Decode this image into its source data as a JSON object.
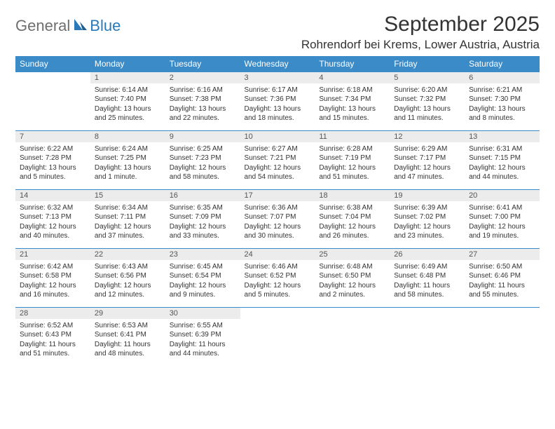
{
  "logo": {
    "text_gray": "General",
    "text_blue": "Blue"
  },
  "title": "September 2025",
  "location": "Rohrendorf bei Krems, Lower Austria, Austria",
  "colors": {
    "header_bg": "#3b8bc8",
    "daynum_bg": "#ececec",
    "row_border": "#3b8bc8",
    "text": "#333333",
    "logo_gray": "#6f6f6f",
    "logo_blue": "#2a7ab9"
  },
  "weekdays": [
    "Sunday",
    "Monday",
    "Tuesday",
    "Wednesday",
    "Thursday",
    "Friday",
    "Saturday"
  ],
  "weeks": [
    [
      null,
      {
        "n": "1",
        "sr": "Sunrise: 6:14 AM",
        "ss": "Sunset: 7:40 PM",
        "dl": "Daylight: 13 hours and 25 minutes."
      },
      {
        "n": "2",
        "sr": "Sunrise: 6:16 AM",
        "ss": "Sunset: 7:38 PM",
        "dl": "Daylight: 13 hours and 22 minutes."
      },
      {
        "n": "3",
        "sr": "Sunrise: 6:17 AM",
        "ss": "Sunset: 7:36 PM",
        "dl": "Daylight: 13 hours and 18 minutes."
      },
      {
        "n": "4",
        "sr": "Sunrise: 6:18 AM",
        "ss": "Sunset: 7:34 PM",
        "dl": "Daylight: 13 hours and 15 minutes."
      },
      {
        "n": "5",
        "sr": "Sunrise: 6:20 AM",
        "ss": "Sunset: 7:32 PM",
        "dl": "Daylight: 13 hours and 11 minutes."
      },
      {
        "n": "6",
        "sr": "Sunrise: 6:21 AM",
        "ss": "Sunset: 7:30 PM",
        "dl": "Daylight: 13 hours and 8 minutes."
      }
    ],
    [
      {
        "n": "7",
        "sr": "Sunrise: 6:22 AM",
        "ss": "Sunset: 7:28 PM",
        "dl": "Daylight: 13 hours and 5 minutes."
      },
      {
        "n": "8",
        "sr": "Sunrise: 6:24 AM",
        "ss": "Sunset: 7:25 PM",
        "dl": "Daylight: 13 hours and 1 minute."
      },
      {
        "n": "9",
        "sr": "Sunrise: 6:25 AM",
        "ss": "Sunset: 7:23 PM",
        "dl": "Daylight: 12 hours and 58 minutes."
      },
      {
        "n": "10",
        "sr": "Sunrise: 6:27 AM",
        "ss": "Sunset: 7:21 PM",
        "dl": "Daylight: 12 hours and 54 minutes."
      },
      {
        "n": "11",
        "sr": "Sunrise: 6:28 AM",
        "ss": "Sunset: 7:19 PM",
        "dl": "Daylight: 12 hours and 51 minutes."
      },
      {
        "n": "12",
        "sr": "Sunrise: 6:29 AM",
        "ss": "Sunset: 7:17 PM",
        "dl": "Daylight: 12 hours and 47 minutes."
      },
      {
        "n": "13",
        "sr": "Sunrise: 6:31 AM",
        "ss": "Sunset: 7:15 PM",
        "dl": "Daylight: 12 hours and 44 minutes."
      }
    ],
    [
      {
        "n": "14",
        "sr": "Sunrise: 6:32 AM",
        "ss": "Sunset: 7:13 PM",
        "dl": "Daylight: 12 hours and 40 minutes."
      },
      {
        "n": "15",
        "sr": "Sunrise: 6:34 AM",
        "ss": "Sunset: 7:11 PM",
        "dl": "Daylight: 12 hours and 37 minutes."
      },
      {
        "n": "16",
        "sr": "Sunrise: 6:35 AM",
        "ss": "Sunset: 7:09 PM",
        "dl": "Daylight: 12 hours and 33 minutes."
      },
      {
        "n": "17",
        "sr": "Sunrise: 6:36 AM",
        "ss": "Sunset: 7:07 PM",
        "dl": "Daylight: 12 hours and 30 minutes."
      },
      {
        "n": "18",
        "sr": "Sunrise: 6:38 AM",
        "ss": "Sunset: 7:04 PM",
        "dl": "Daylight: 12 hours and 26 minutes."
      },
      {
        "n": "19",
        "sr": "Sunrise: 6:39 AM",
        "ss": "Sunset: 7:02 PM",
        "dl": "Daylight: 12 hours and 23 minutes."
      },
      {
        "n": "20",
        "sr": "Sunrise: 6:41 AM",
        "ss": "Sunset: 7:00 PM",
        "dl": "Daylight: 12 hours and 19 minutes."
      }
    ],
    [
      {
        "n": "21",
        "sr": "Sunrise: 6:42 AM",
        "ss": "Sunset: 6:58 PM",
        "dl": "Daylight: 12 hours and 16 minutes."
      },
      {
        "n": "22",
        "sr": "Sunrise: 6:43 AM",
        "ss": "Sunset: 6:56 PM",
        "dl": "Daylight: 12 hours and 12 minutes."
      },
      {
        "n": "23",
        "sr": "Sunrise: 6:45 AM",
        "ss": "Sunset: 6:54 PM",
        "dl": "Daylight: 12 hours and 9 minutes."
      },
      {
        "n": "24",
        "sr": "Sunrise: 6:46 AM",
        "ss": "Sunset: 6:52 PM",
        "dl": "Daylight: 12 hours and 5 minutes."
      },
      {
        "n": "25",
        "sr": "Sunrise: 6:48 AM",
        "ss": "Sunset: 6:50 PM",
        "dl": "Daylight: 12 hours and 2 minutes."
      },
      {
        "n": "26",
        "sr": "Sunrise: 6:49 AM",
        "ss": "Sunset: 6:48 PM",
        "dl": "Daylight: 11 hours and 58 minutes."
      },
      {
        "n": "27",
        "sr": "Sunrise: 6:50 AM",
        "ss": "Sunset: 6:46 PM",
        "dl": "Daylight: 11 hours and 55 minutes."
      }
    ],
    [
      {
        "n": "28",
        "sr": "Sunrise: 6:52 AM",
        "ss": "Sunset: 6:43 PM",
        "dl": "Daylight: 11 hours and 51 minutes."
      },
      {
        "n": "29",
        "sr": "Sunrise: 6:53 AM",
        "ss": "Sunset: 6:41 PM",
        "dl": "Daylight: 11 hours and 48 minutes."
      },
      {
        "n": "30",
        "sr": "Sunrise: 6:55 AM",
        "ss": "Sunset: 6:39 PM",
        "dl": "Daylight: 11 hours and 44 minutes."
      },
      null,
      null,
      null,
      null
    ]
  ]
}
